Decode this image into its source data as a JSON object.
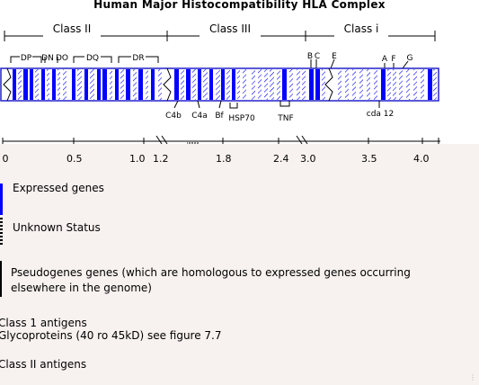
{
  "title": "Human Major Histocompatibility HLA Complex",
  "regions": [
    "Class II",
    "Class III",
    "Class i"
  ],
  "top_labels": {
    "dp": "DP",
    "dn": "DN",
    "do": "DO",
    "dq": "DQ",
    "dr": "DR",
    "b": "B",
    "c": "C",
    "e": "E",
    "a": "A",
    "f": "F",
    "g": "G"
  },
  "bottom_labels": {
    "c4b": "C4b",
    "c4a": "C4a",
    "bf": "Bf",
    "hsp70": "HSP70",
    "tnf": "TNF",
    "cda12": "cda 12"
  },
  "scale_ticks": [
    "0",
    "0.5",
    "1.0",
    "1.2",
    "1.8",
    "2.4",
    "3.0",
    "3.5",
    "4.0"
  ],
  "colors": {
    "expressed": "#0000ff",
    "frame": "#2222cc",
    "panel": "#f7f1ef"
  },
  "legend": {
    "expressed": "Expressed genes",
    "unknown": "Unknown Status",
    "pseudo_line1": "Pseudogenes genes (which are homologous to expressed genes occurring",
    "pseudo_line2": "elsewhere in the genome)"
  },
  "notes": {
    "class1_title": "Class 1 antigens",
    "class1_desc": "Glycoproteins (40 ro 45kD) see figure 7.7",
    "class2_title": "Class II antigens"
  }
}
